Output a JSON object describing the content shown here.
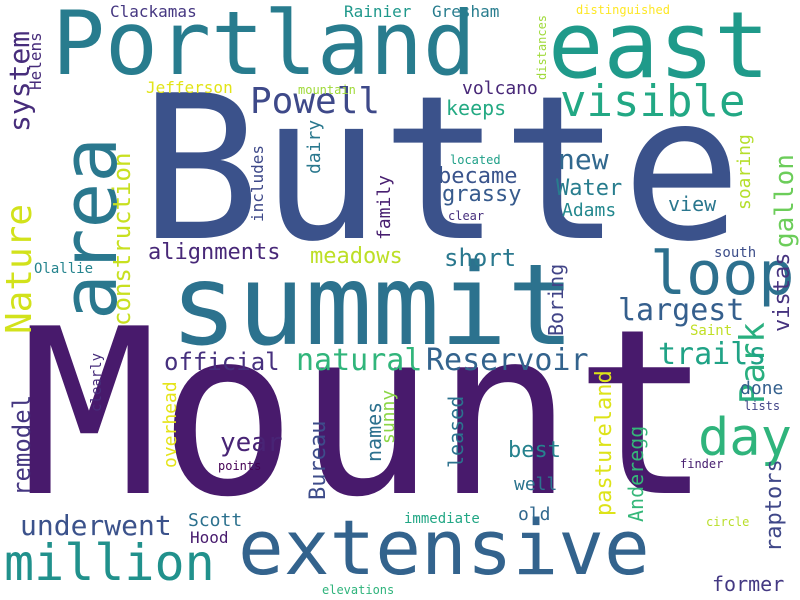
{
  "words": [
    {
      "text": "Mount",
      "color": "#481a6c"
    },
    {
      "text": "Butte",
      "color": "#3b528b"
    },
    {
      "text": "summit",
      "color": "#2c728e"
    },
    {
      "text": "Portland",
      "color": "#287c8e"
    },
    {
      "text": "east",
      "color": "#1f9a8a"
    },
    {
      "text": "area",
      "color": "#2a788e"
    },
    {
      "text": "extensive",
      "color": "#33638d"
    },
    {
      "text": "visible",
      "color": "#22a884"
    },
    {
      "text": "loop",
      "color": "#2d708e"
    },
    {
      "text": "day",
      "color": "#2fb47c"
    },
    {
      "text": "million",
      "color": "#21918c"
    },
    {
      "text": "Park",
      "color": "#29af7f"
    },
    {
      "text": "Nature",
      "color": "#d2e21b"
    },
    {
      "text": "Powell",
      "color": "#3e4989"
    },
    {
      "text": "largest",
      "color": "#355f8d"
    },
    {
      "text": "system",
      "color": "#472d7b"
    },
    {
      "text": "construction",
      "color": "#c8e020"
    },
    {
      "text": "natural",
      "color": "#31b57b"
    },
    {
      "text": "Reservoir",
      "color": "#33638d"
    },
    {
      "text": "trails",
      "color": "#20a386"
    },
    {
      "text": "new",
      "color": "#31688e"
    },
    {
      "text": "raptors",
      "color": "#3f4788"
    },
    {
      "text": "alignments",
      "color": "#482878"
    },
    {
      "text": "underwent",
      "color": "#3b528b"
    },
    {
      "text": "remodel",
      "color": "#453781"
    },
    {
      "text": "gallon",
      "color": "#6ccd5a"
    },
    {
      "text": "vistas",
      "color": "#46337f"
    },
    {
      "text": "pastureland",
      "color": "#dde318"
    },
    {
      "text": "year",
      "color": "#482475"
    },
    {
      "text": "official",
      "color": "#46307e"
    },
    {
      "text": "meadows",
      "color": "#bddf26"
    },
    {
      "text": "short",
      "color": "#2a788e"
    },
    {
      "text": "Water",
      "color": "#287d8e"
    },
    {
      "text": "became",
      "color": "#3a548c"
    },
    {
      "text": "grassy",
      "color": "#375b8d"
    },
    {
      "text": "Bureau",
      "color": "#3e4c8a"
    },
    {
      "text": "best",
      "color": "#26828e"
    },
    {
      "text": "Boring",
      "color": "#414487"
    },
    {
      "text": "names",
      "color": "#2c718e"
    },
    {
      "text": "view",
      "color": "#2a778e"
    },
    {
      "text": "former",
      "color": "#443983"
    },
    {
      "text": "Anderegg",
      "color": "#35b779"
    },
    {
      "text": "keeps",
      "color": "#24aa83"
    },
    {
      "text": "volcano",
      "color": "#482878"
    },
    {
      "text": "sunny",
      "color": "#8bd646"
    },
    {
      "text": "leased",
      "color": "#2c728e"
    },
    {
      "text": "family",
      "color": "#481f70"
    },
    {
      "text": "dairy",
      "color": "#2a788e"
    },
    {
      "text": "overhead",
      "color": "#e5e419"
    },
    {
      "text": "soaring",
      "color": "#b5de2b"
    },
    {
      "text": "Adams",
      "color": "#23888e"
    },
    {
      "text": "includes",
      "color": "#3e4989"
    },
    {
      "text": "well",
      "color": "#2b748e"
    },
    {
      "text": "old",
      "color": "#31688e"
    },
    {
      "text": "Scott",
      "color": "#2c718e"
    },
    {
      "text": "done",
      "color": "#34608d"
    },
    {
      "text": "Clackamas",
      "color": "#453781"
    },
    {
      "text": "Rainier",
      "color": "#1f988b"
    },
    {
      "text": "Gresham",
      "color": "#287d8e"
    },
    {
      "text": "Helens",
      "color": "#472c7a"
    },
    {
      "text": "Jefferson",
      "color": "#e2e418"
    },
    {
      "text": "Hood",
      "color": "#481c6e"
    },
    {
      "text": "Saint",
      "color": "#c0df25"
    },
    {
      "text": "south",
      "color": "#3d4e8a"
    },
    {
      "text": "Olallie",
      "color": "#25848e"
    },
    {
      "text": "south",
      "color": "#3d4e8a"
    },
    {
      "text": "clearly",
      "color": "#472d7b"
    },
    {
      "text": "immediate",
      "color": "#22a785"
    },
    {
      "text": "distances",
      "color": "#9fda3a"
    },
    {
      "text": "distinguished",
      "color": "#fde725"
    },
    {
      "text": "mountain",
      "color": "#a0da39"
    },
    {
      "text": "located",
      "color": "#1fa088"
    },
    {
      "text": "clear",
      "color": "#472f7d"
    },
    {
      "text": "points",
      "color": "#440154"
    },
    {
      "text": "lists",
      "color": "#414487"
    },
    {
      "text": "finder",
      "color": "#482071"
    },
    {
      "text": "circle",
      "color": "#b8de29"
    },
    {
      "text": "elevations",
      "color": "#2fb47c"
    }
  ]
}
